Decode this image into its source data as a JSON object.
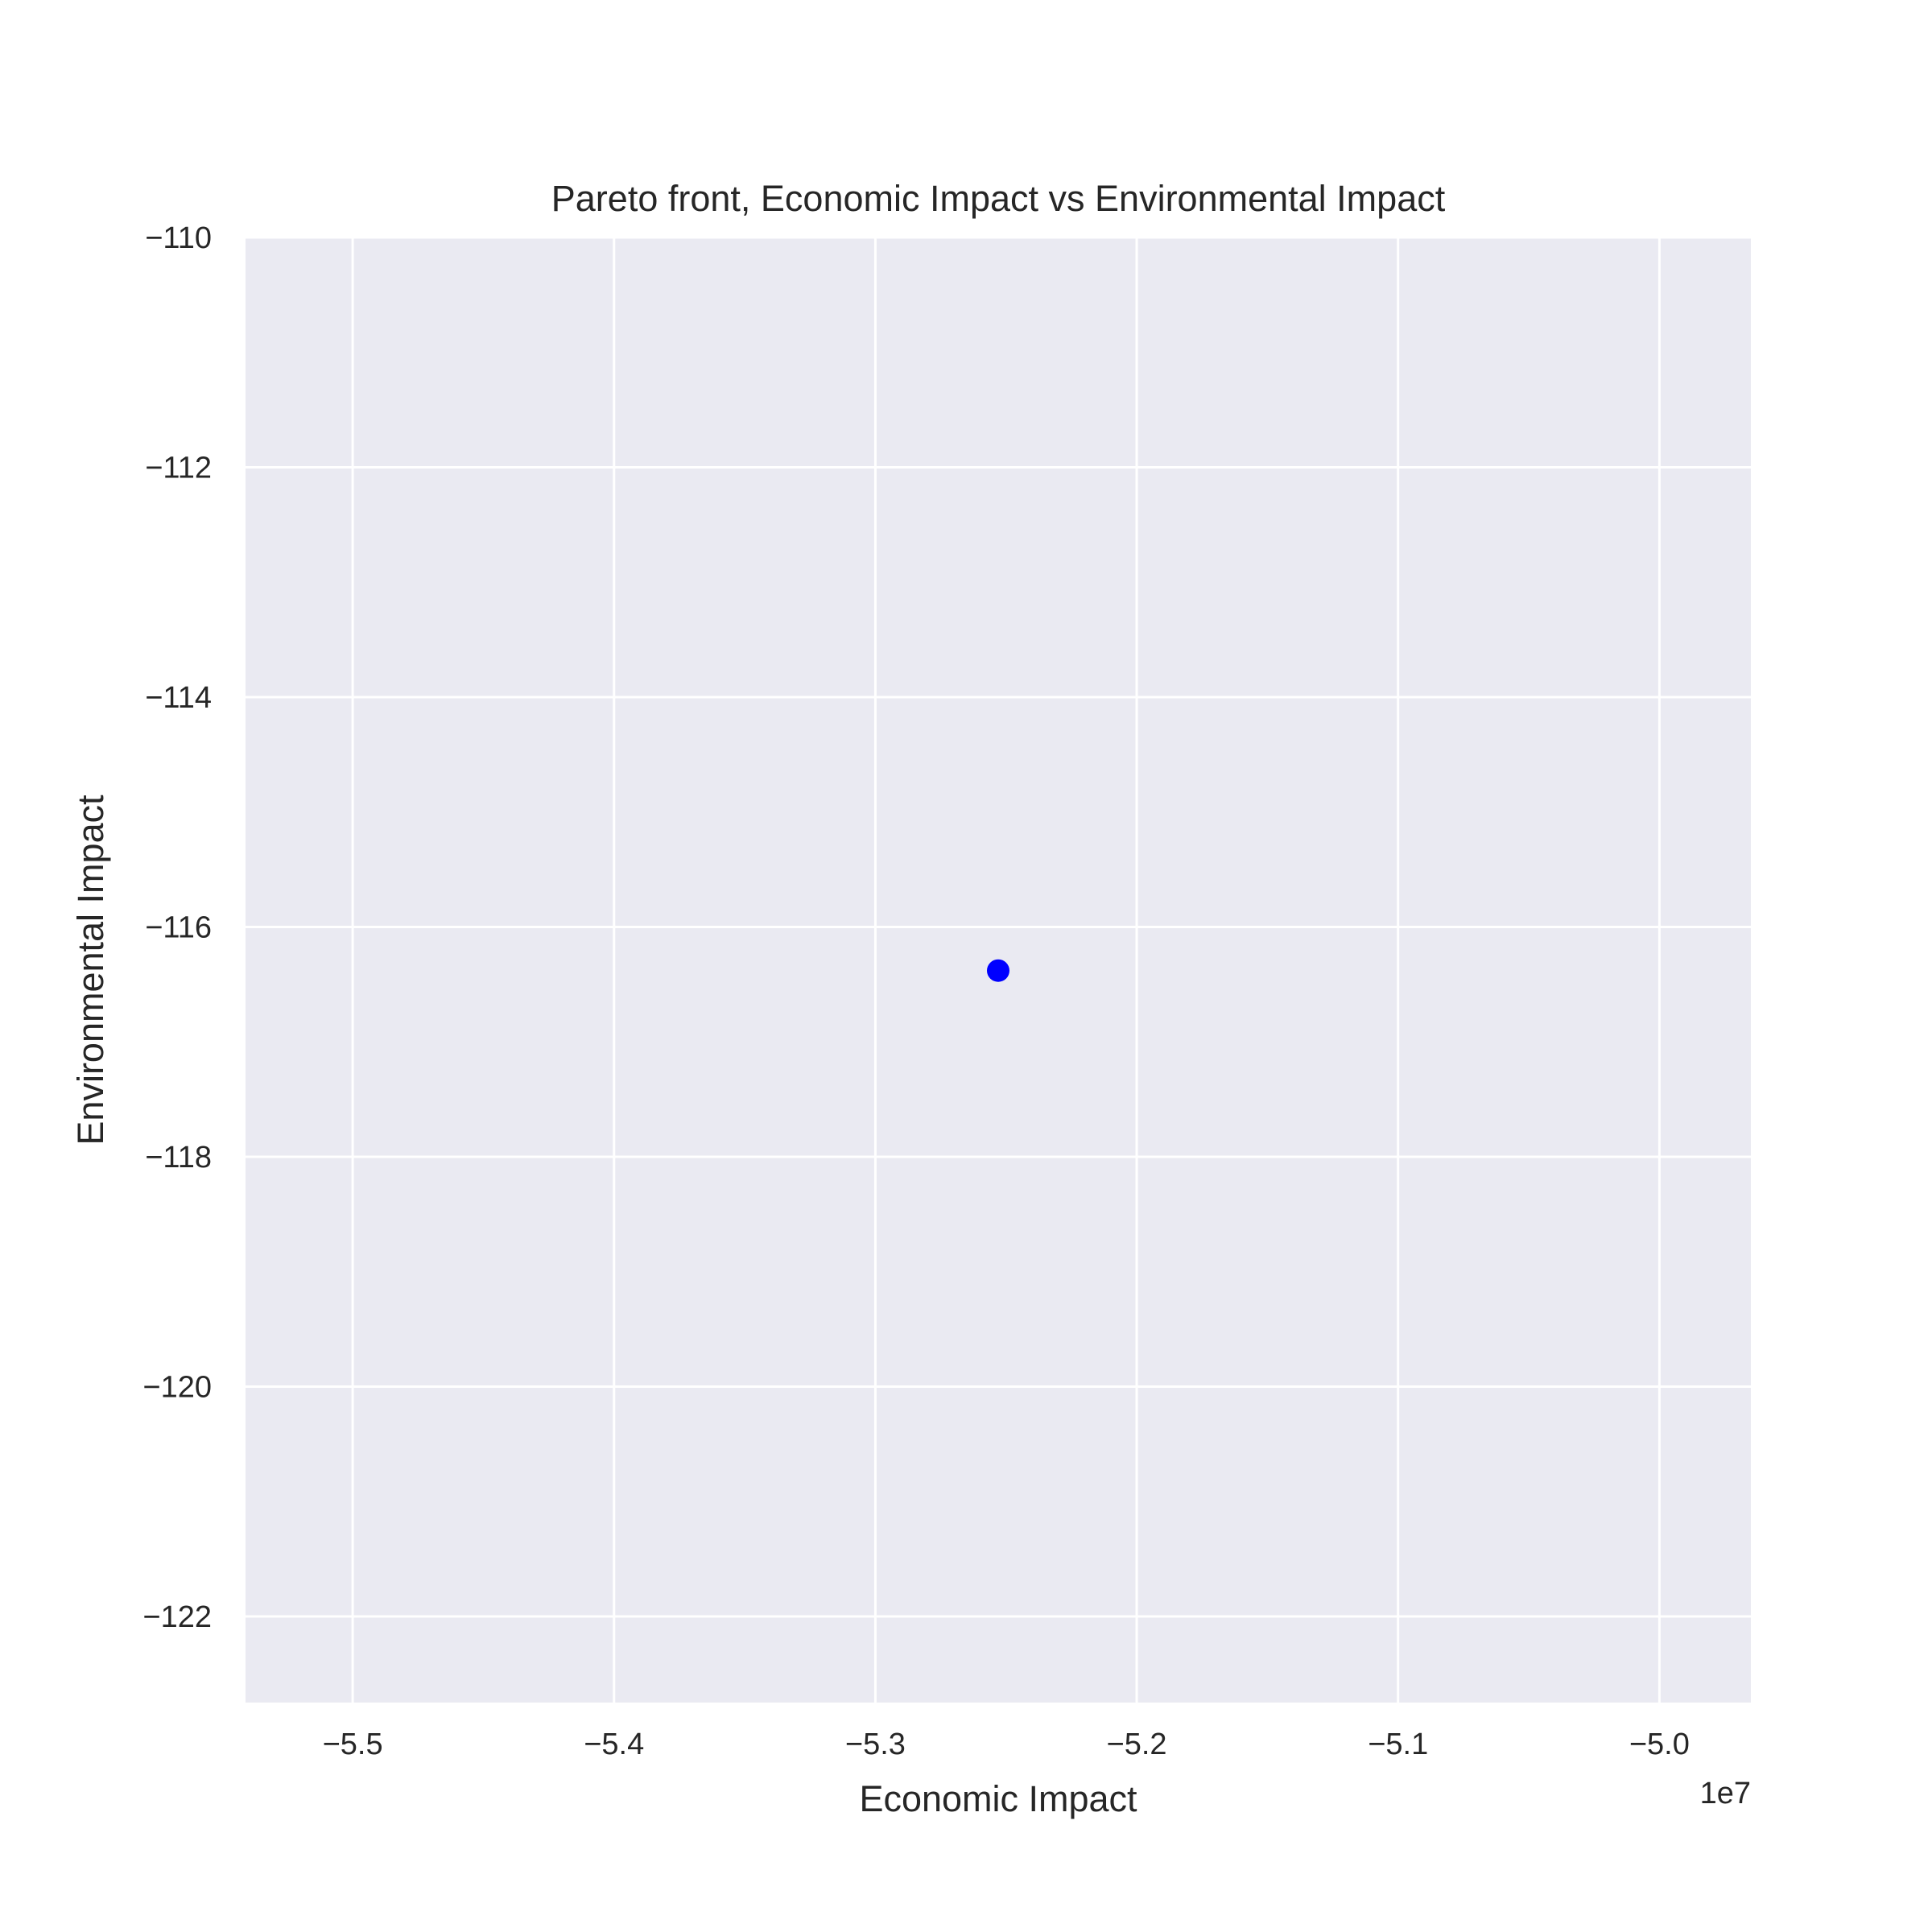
{
  "chart_data": {
    "type": "scatter",
    "title": "Pareto front, Economic Impact vs Environmental Impact",
    "xlabel": "Economic Impact",
    "ylabel": "Environmental Impact",
    "x_offset_label": "1e7",
    "x_scale": 10000000,
    "xlim": [
      -55410000,
      -49650000
    ],
    "ylim": [
      -122.75,
      -110
    ],
    "xticks": [
      -5.5,
      -5.4,
      -5.3,
      -5.2,
      -5.1,
      -5.0
    ],
    "xtick_labels": [
      "−5.5",
      "−5.4",
      "−5.3",
      "−5.2",
      "−5.1",
      "−5.0"
    ],
    "yticks": [
      -110,
      -112,
      -114,
      -116,
      -118,
      -120,
      -122
    ],
    "ytick_labels": [
      "−110",
      "−112",
      "−114",
      "−116",
      "−118",
      "−120",
      "−122"
    ],
    "grid": true,
    "background": "#eaeaf2",
    "points": [
      {
        "x": -52530000,
        "y": -116.38,
        "color": "#0000ff"
      }
    ]
  }
}
